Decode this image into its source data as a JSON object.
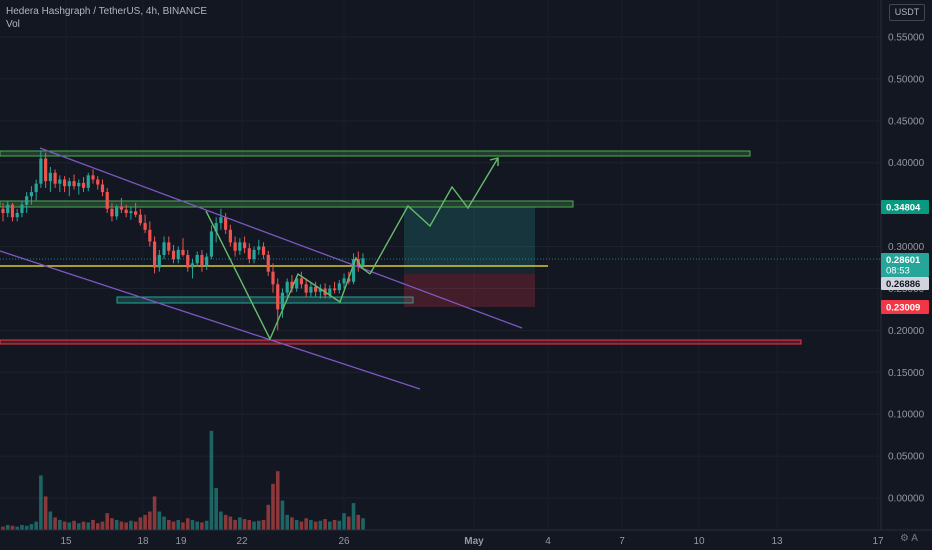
{
  "header": {
    "title": "Hedera Hashgraph / TetherUS, 4h, BINANCE",
    "indicator": "Vol",
    "currency": "USDT"
  },
  "colors": {
    "background": "#131722",
    "up": "#26a69a",
    "down": "#ef5350",
    "channel": "#7e57c2",
    "zone": "#4caf50",
    "path": "#66bb6a",
    "yellow_line": "#ffeb3b",
    "support_red": "#f23645"
  },
  "price_axis": {
    "ticks": [
      "0.55000",
      "0.50000",
      "0.45000",
      "0.40000",
      "0.35000",
      "0.30000",
      "0.25000",
      "0.20000",
      "0.15000",
      "0.10000",
      "0.05000",
      "0.00000"
    ]
  },
  "time_axis": {
    "ticks": [
      "15",
      "18",
      "19",
      "22",
      "26",
      "May",
      "4",
      "7",
      "10",
      "13",
      "17"
    ]
  },
  "price_labels": {
    "target": "0.34804",
    "last": "0.28601",
    "countdown": "08:53",
    "entry": "0.26886",
    "stop": "0.23009"
  },
  "footer": {
    "gear_icon": "⚙",
    "gear_label": "A"
  },
  "chart_data": {
    "type": "candlestick",
    "symbol": "HBAR/USDT",
    "timeframe": "4h",
    "exchange": "BINANCE",
    "ylim": [
      0,
      0.58
    ],
    "candles": [
      [
        0.345,
        0.352,
        0.33,
        0.34
      ],
      [
        0.34,
        0.355,
        0.335,
        0.35
      ],
      [
        0.35,
        0.352,
        0.33,
        0.335
      ],
      [
        0.335,
        0.345,
        0.33,
        0.34
      ],
      [
        0.34,
        0.355,
        0.335,
        0.35
      ],
      [
        0.35,
        0.365,
        0.34,
        0.36
      ],
      [
        0.36,
        0.372,
        0.35,
        0.365
      ],
      [
        0.365,
        0.38,
        0.355,
        0.375
      ],
      [
        0.375,
        0.415,
        0.37,
        0.405
      ],
      [
        0.405,
        0.412,
        0.37,
        0.378
      ],
      [
        0.378,
        0.395,
        0.365,
        0.388
      ],
      [
        0.388,
        0.392,
        0.37,
        0.375
      ],
      [
        0.375,
        0.385,
        0.365,
        0.38
      ],
      [
        0.38,
        0.384,
        0.365,
        0.372
      ],
      [
        0.372,
        0.382,
        0.36,
        0.378
      ],
      [
        0.378,
        0.386,
        0.368,
        0.372
      ],
      [
        0.372,
        0.38,
        0.362,
        0.376
      ],
      [
        0.376,
        0.383,
        0.365,
        0.37
      ],
      [
        0.37,
        0.388,
        0.366,
        0.385
      ],
      [
        0.385,
        0.392,
        0.375,
        0.38
      ],
      [
        0.38,
        0.384,
        0.368,
        0.374
      ],
      [
        0.374,
        0.38,
        0.36,
        0.365
      ],
      [
        0.365,
        0.37,
        0.34,
        0.345
      ],
      [
        0.345,
        0.352,
        0.33,
        0.336
      ],
      [
        0.336,
        0.35,
        0.332,
        0.348
      ],
      [
        0.348,
        0.358,
        0.34,
        0.344
      ],
      [
        0.344,
        0.35,
        0.335,
        0.34
      ],
      [
        0.34,
        0.348,
        0.332,
        0.342
      ],
      [
        0.342,
        0.352,
        0.335,
        0.338
      ],
      [
        0.338,
        0.345,
        0.325,
        0.328
      ],
      [
        0.328,
        0.338,
        0.316,
        0.32
      ],
      [
        0.32,
        0.33,
        0.3,
        0.306
      ],
      [
        0.306,
        0.312,
        0.268,
        0.275
      ],
      [
        0.275,
        0.296,
        0.27,
        0.29
      ],
      [
        0.29,
        0.312,
        0.285,
        0.305
      ],
      [
        0.305,
        0.312,
        0.29,
        0.295
      ],
      [
        0.295,
        0.302,
        0.28,
        0.285
      ],
      [
        0.285,
        0.3,
        0.28,
        0.296
      ],
      [
        0.296,
        0.31,
        0.288,
        0.29
      ],
      [
        0.29,
        0.296,
        0.27,
        0.275
      ],
      [
        0.275,
        0.285,
        0.262,
        0.28
      ],
      [
        0.28,
        0.294,
        0.276,
        0.29
      ],
      [
        0.29,
        0.296,
        0.27,
        0.278
      ],
      [
        0.278,
        0.292,
        0.272,
        0.288
      ],
      [
        0.288,
        0.325,
        0.285,
        0.318
      ],
      [
        0.318,
        0.335,
        0.305,
        0.328
      ],
      [
        0.328,
        0.345,
        0.32,
        0.335
      ],
      [
        0.335,
        0.34,
        0.315,
        0.32
      ],
      [
        0.32,
        0.326,
        0.3,
        0.305
      ],
      [
        0.305,
        0.312,
        0.288,
        0.295
      ],
      [
        0.295,
        0.31,
        0.29,
        0.305
      ],
      [
        0.305,
        0.312,
        0.292,
        0.298
      ],
      [
        0.298,
        0.304,
        0.28,
        0.285
      ],
      [
        0.285,
        0.3,
        0.28,
        0.296
      ],
      [
        0.296,
        0.308,
        0.29,
        0.3
      ],
      [
        0.3,
        0.305,
        0.285,
        0.29
      ],
      [
        0.29,
        0.295,
        0.265,
        0.27
      ],
      [
        0.27,
        0.28,
        0.245,
        0.255
      ],
      [
        0.255,
        0.262,
        0.2,
        0.225
      ],
      [
        0.225,
        0.25,
        0.215,
        0.245
      ],
      [
        0.245,
        0.262,
        0.24,
        0.258
      ],
      [
        0.258,
        0.266,
        0.245,
        0.25
      ],
      [
        0.25,
        0.265,
        0.246,
        0.262
      ],
      [
        0.262,
        0.27,
        0.25,
        0.255
      ],
      [
        0.255,
        0.262,
        0.24,
        0.245
      ],
      [
        0.245,
        0.256,
        0.24,
        0.252
      ],
      [
        0.252,
        0.258,
        0.24,
        0.246
      ],
      [
        0.246,
        0.255,
        0.238,
        0.25
      ],
      [
        0.25,
        0.256,
        0.238,
        0.242
      ],
      [
        0.242,
        0.254,
        0.238,
        0.25
      ],
      [
        0.25,
        0.258,
        0.244,
        0.248
      ],
      [
        0.248,
        0.26,
        0.244,
        0.256
      ],
      [
        0.256,
        0.268,
        0.25,
        0.262
      ],
      [
        0.262,
        0.27,
        0.255,
        0.258
      ],
      [
        0.258,
        0.292,
        0.255,
        0.285
      ],
      [
        0.285,
        0.294,
        0.27,
        0.278
      ],
      [
        0.278,
        0.292,
        0.274,
        0.286
      ]
    ],
    "volume": [
      0.004,
      0.006,
      0.005,
      0.004,
      0.006,
      0.005,
      0.007,
      0.01,
      0.065,
      0.04,
      0.022,
      0.015,
      0.012,
      0.01,
      0.009,
      0.011,
      0.008,
      0.01,
      0.009,
      0.012,
      0.008,
      0.01,
      0.02,
      0.014,
      0.012,
      0.01,
      0.009,
      0.011,
      0.01,
      0.015,
      0.018,
      0.022,
      0.04,
      0.022,
      0.016,
      0.012,
      0.01,
      0.012,
      0.009,
      0.014,
      0.012,
      0.01,
      0.009,
      0.011,
      0.118,
      0.05,
      0.022,
      0.018,
      0.016,
      0.012,
      0.015,
      0.013,
      0.012,
      0.01,
      0.011,
      0.012,
      0.03,
      0.055,
      0.07,
      0.035,
      0.018,
      0.015,
      0.012,
      0.01,
      0.014,
      0.012,
      0.01,
      0.011,
      0.013,
      0.01,
      0.012,
      0.011,
      0.02,
      0.016,
      0.032,
      0.018,
      0.014
    ],
    "volume_ylim": [
      0,
      0.3
    ]
  }
}
